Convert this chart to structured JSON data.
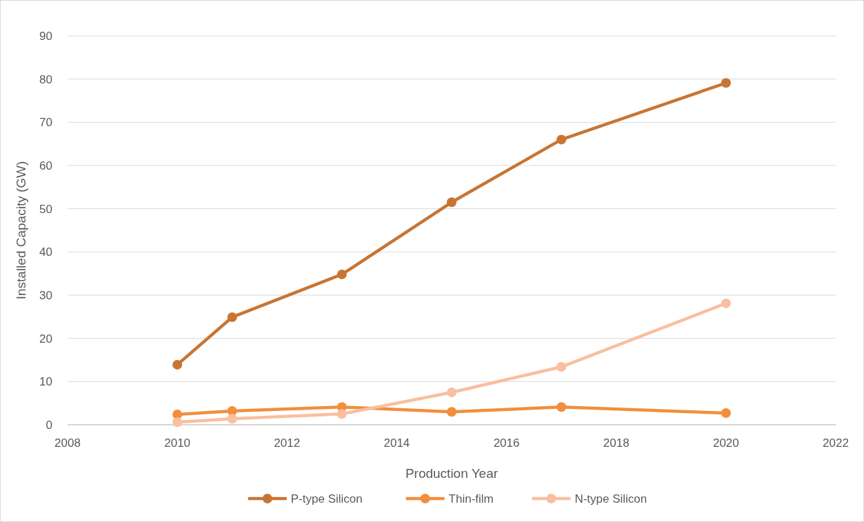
{
  "chart_data": {
    "type": "line",
    "xlabel": "Production Year",
    "ylabel": "Installed Capacity (GW)",
    "xlim": [
      2008,
      2022
    ],
    "xticks": [
      2008,
      2010,
      2012,
      2014,
      2016,
      2018,
      2020,
      2022
    ],
    "ylim": [
      0,
      90
    ],
    "yticks": [
      0,
      10,
      20,
      30,
      40,
      50,
      60,
      70,
      80,
      90
    ],
    "grid": "y",
    "legend": "bottom",
    "marker": "circle",
    "line_style": "solid",
    "x": [
      2010,
      2011,
      2013,
      2015,
      2017,
      2020
    ],
    "series": [
      {
        "name": "P-type Silicon",
        "color": "#c87533",
        "values": [
          13.9,
          24.9,
          34.8,
          51.5,
          66,
          79.1
        ]
      },
      {
        "name": "Thin-film",
        "color": "#f28e3c",
        "values": [
          2.4,
          3.2,
          4.1,
          3.0,
          4.1,
          2.7
        ]
      },
      {
        "name": "N-type Silicon",
        "color": "#f8bfa0",
        "values": [
          0.6,
          1.4,
          2.5,
          7.5,
          13.4,
          28.1
        ]
      }
    ]
  }
}
